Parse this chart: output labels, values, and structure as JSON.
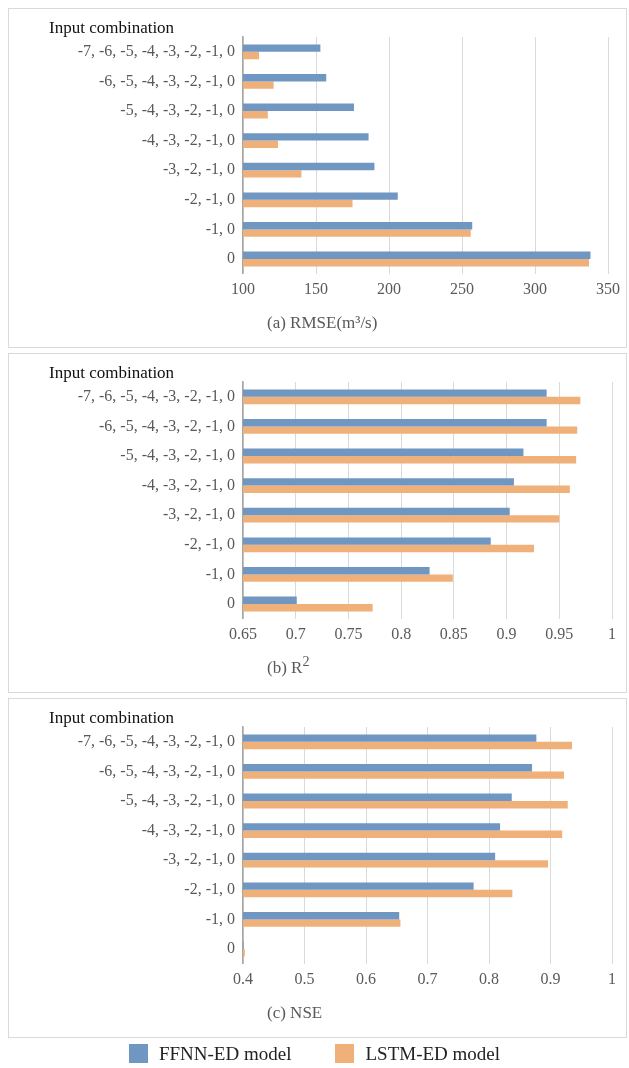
{
  "chart_data": [
    {
      "type": "bar",
      "orientation": "horizontal",
      "ylabel": "Input combination",
      "xlabel": "(a) RMSE(m³/s)",
      "categories": [
        "-7, -6, -5, -4, -3, -2, -1, 0",
        "-6, -5, -4, -3, -2, -1, 0",
        "-5, -4, -3, -2, -1, 0",
        "-4, -3, -2, -1, 0",
        "-3, -2, -1, 0",
        "-2, -1, 0",
        "-1, 0",
        "0"
      ],
      "series": [
        {
          "color": "#6f97c2",
          "values": [
            153,
            157,
            176,
            186,
            190,
            206,
            257,
            338
          ]
        },
        {
          "color": "#f0b07a",
          "values": [
            111,
            121,
            117,
            124,
            140,
            175,
            256,
            337
          ]
        }
      ],
      "xlim": [
        100,
        350
      ],
      "xticks": [
        100,
        150,
        200,
        250,
        300,
        350
      ],
      "grid": "x",
      "legend": false
    },
    {
      "type": "bar",
      "orientation": "horizontal",
      "ylabel": "Input combination",
      "xlabel": "(b) R$^{2}$",
      "categories": [
        "-7, -6, -5, -4, -3, -2, -1, 0",
        "-6, -5, -4, -3, -2, -1, 0",
        "-5, -4, -3, -2, -1, 0",
        "-4, -3, -2, -1, 0",
        "-3, -2, -1, 0",
        "-2, -1, 0",
        "-1, 0",
        "0"
      ],
      "series": [
        {
          "color": "#6f97c2",
          "values": [
            0.938,
            0.938,
            0.916,
            0.907,
            0.903,
            0.885,
            0.827,
            0.701
          ]
        },
        {
          "color": "#f0b07a",
          "values": [
            0.97,
            0.967,
            0.966,
            0.96,
            0.95,
            0.926,
            0.849,
            0.773
          ]
        }
      ],
      "xlim": [
        0.65,
        1
      ],
      "xticks": [
        0.65,
        0.7,
        0.75,
        0.8,
        0.85,
        0.9,
        0.95,
        1
      ],
      "grid": "x",
      "legend": false
    },
    {
      "type": "bar",
      "orientation": "horizontal",
      "ylabel": "Input combination",
      "xlabel": "(c) NSE",
      "categories": [
        "-7, -6, -5, -4, -3, -2, -1, 0",
        "-6, -5, -4, -3, -2, -1, 0",
        "-5, -4, -3, -2, -1, 0",
        "-4, -3, -2, -1, 0",
        "-3, -2, -1, 0",
        "-2, -1, 0",
        "-1, 0",
        "0"
      ],
      "series": [
        {
          "name": "FFNN-ED model",
          "color": "#6f97c2",
          "values": [
            0.877,
            0.87,
            0.837,
            0.818,
            0.81,
            0.775,
            0.654,
            0.401
          ]
        },
        {
          "name": "LSTM-ED model",
          "color": "#f0b07a",
          "values": [
            0.935,
            0.922,
            0.928,
            0.919,
            0.896,
            0.838,
            0.656,
            0.403
          ]
        }
      ],
      "xlim": [
        0.4,
        1
      ],
      "xticks": [
        0.4,
        0.5,
        0.6,
        0.7,
        0.8,
        0.9,
        1
      ],
      "grid": "x",
      "legend": "bottom"
    }
  ]
}
